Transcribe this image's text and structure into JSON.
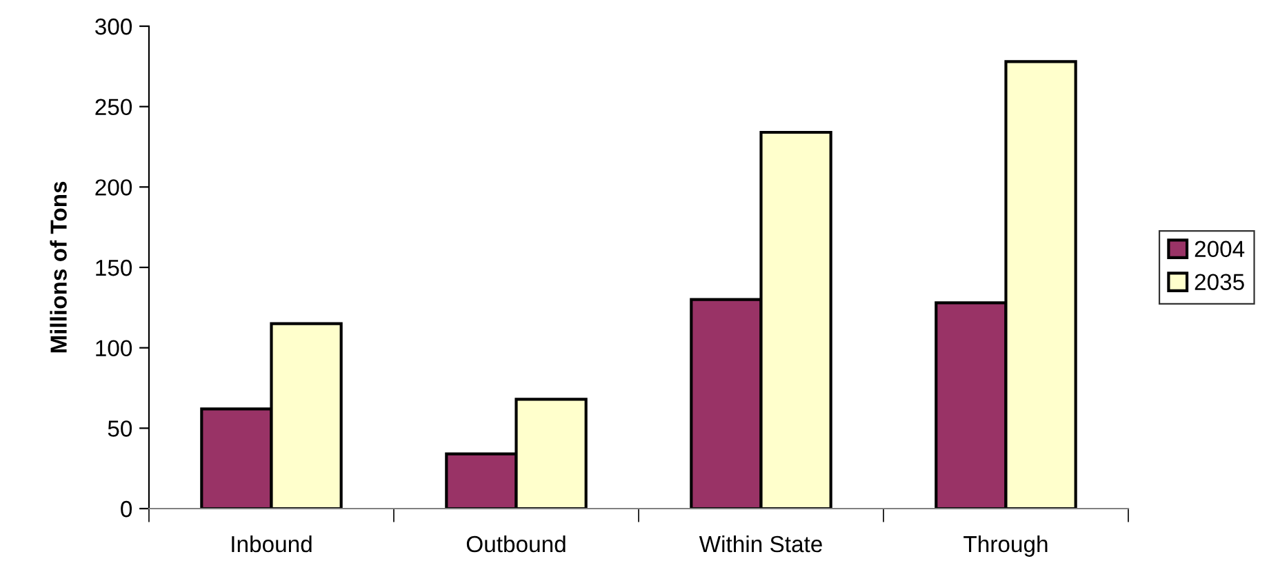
{
  "chart_data": {
    "type": "bar",
    "ylabel": "Millions of Tons",
    "categories": [
      "Inbound",
      "Outbound",
      "Within State",
      "Through"
    ],
    "series": [
      {
        "name": "2004",
        "color": "#993366",
        "values": [
          62,
          34,
          130,
          128
        ]
      },
      {
        "name": "2035",
        "color": "#ffffcc",
        "values": [
          115,
          68,
          234,
          278
        ]
      }
    ],
    "ylim": [
      0,
      300
    ],
    "yticks": [
      0,
      50,
      100,
      150,
      200,
      250,
      300
    ],
    "grid": false,
    "legend": "right"
  }
}
